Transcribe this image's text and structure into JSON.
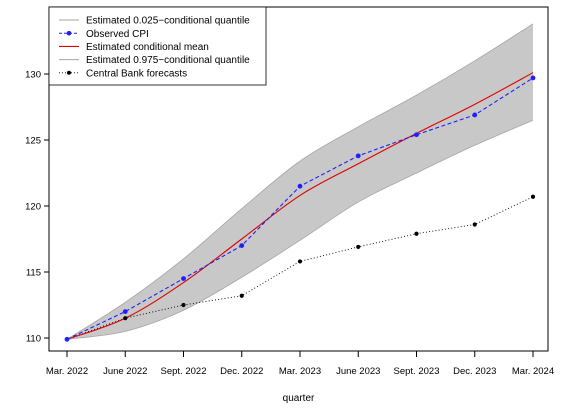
{
  "chart_data": {
    "type": "line",
    "xlabel": "quarter",
    "ylabel": "",
    "categories": [
      "Mar. 2022",
      "June 2022",
      "Sept. 2022",
      "Dec. 2022",
      "Mar. 2023",
      "June 2023",
      "Sept. 2023",
      "Dec. 2023",
      "Mar. 2024"
    ],
    "ylim": [
      109.8,
      134.0
    ],
    "yticks": [
      110,
      115,
      120,
      125,
      130
    ],
    "grid": false,
    "legend_position": "top-left",
    "colors": {
      "band": "#c8c8c8",
      "band_edge": "#a6a6a6",
      "observed": "#1f1fff",
      "mean": "#e00000",
      "forecast": "#000000"
    },
    "series": [
      {
        "name": "Estimated 0.025−conditional quantile",
        "values": [
          109.9,
          110.5,
          112.1,
          114.6,
          117.4,
          120.3,
          122.5,
          124.6,
          126.5
        ]
      },
      {
        "name": "Observed CPI",
        "values": [
          109.9,
          112.0,
          114.5,
          117.0,
          121.5,
          123.8,
          125.4,
          126.9,
          129.7
        ]
      },
      {
        "name": "Estimated conditional mean",
        "values": [
          109.9,
          111.5,
          114.2,
          117.5,
          120.8,
          123.2,
          125.5,
          127.7,
          130.1
        ]
      },
      {
        "name": "Estimated 0.975−conditional quantile",
        "values": [
          109.9,
          112.7,
          116.0,
          119.8,
          123.4,
          126.0,
          128.4,
          131.0,
          133.8
        ]
      },
      {
        "name": "Central Bank forecasts",
        "values": [
          109.9,
          111.5,
          112.5,
          113.2,
          115.8,
          116.9,
          117.9,
          118.6,
          120.7
        ]
      }
    ]
  }
}
